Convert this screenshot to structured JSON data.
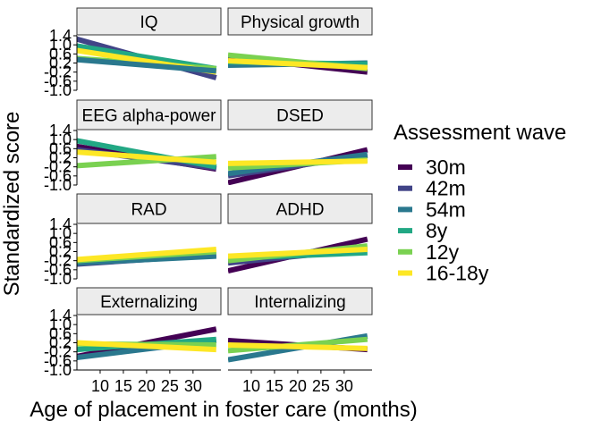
{
  "chart_data": {
    "type": "line",
    "xlabel": "Age of placement in foster care (months)",
    "ylabel": "Standardized score",
    "xlim": [
      5,
      36
    ],
    "ylim": [
      -1.0,
      1.4
    ],
    "x_ticks": [
      10,
      15,
      20,
      25,
      30
    ],
    "x_tick_labels": [
      "10",
      "15",
      "20",
      "25",
      "30"
    ],
    "y_ticks": [
      -1.0,
      -0.6,
      -0.2,
      0.2,
      0.6,
      1.0,
      1.4
    ],
    "y_tick_labels": [
      "-1.0",
      "-0.6",
      "-0.2",
      "0.2",
      "0.6",
      "1.0",
      "1.4"
    ],
    "grid": false,
    "legend": {
      "title": "Assessment wave",
      "placement": "right",
      "entries": [
        {
          "label": "30m",
          "color": "#440154"
        },
        {
          "label": "42m",
          "color": "#414487"
        },
        {
          "label": "54m",
          "color": "#2A788E"
        },
        {
          "label": "8y",
          "color": "#22A884"
        },
        {
          "label": "12y",
          "color": "#7AD151"
        },
        {
          "label": "16-18y",
          "color": "#FDE725"
        }
      ]
    },
    "panels": [
      {
        "title": "IQ",
        "series": [
          {
            "name": "42m",
            "x": [
              5,
              35
            ],
            "y": [
              1.25,
              -0.45
            ]
          },
          {
            "name": "8y",
            "x": [
              5,
              35
            ],
            "y": [
              0.95,
              -0.05
            ]
          },
          {
            "name": "12y",
            "x": [
              5,
              35
            ],
            "y": [
              0.4,
              -0.05
            ]
          },
          {
            "name": "16-18y",
            "x": [
              5,
              35
            ],
            "y": [
              0.75,
              -0.2
            ]
          },
          {
            "name": "54m",
            "x": [
              5,
              35
            ],
            "y": [
              0.35,
              -0.15
            ]
          }
        ]
      },
      {
        "title": "Physical growth",
        "series": [
          {
            "name": "30m",
            "x": [
              5,
              35
            ],
            "y": [
              0.45,
              -0.2
            ]
          },
          {
            "name": "54m",
            "x": [
              5,
              35
            ],
            "y": [
              0.1,
              0.2
            ]
          },
          {
            "name": "8y",
            "x": [
              5,
              35
            ],
            "y": [
              0.25,
              0.15
            ]
          },
          {
            "name": "12y",
            "x": [
              5,
              35
            ],
            "y": [
              0.55,
              -0.05
            ]
          },
          {
            "name": "16-18y",
            "x": [
              5,
              35
            ],
            "y": [
              0.3,
              0.0
            ]
          }
        ]
      },
      {
        "title": "EEG alpha-power",
        "series": [
          {
            "name": "30m",
            "x": [
              5,
              35
            ],
            "y": [
              0.7,
              -0.3
            ]
          },
          {
            "name": "42m",
            "x": [
              5,
              35
            ],
            "y": [
              0.55,
              -0.25
            ]
          },
          {
            "name": "8y",
            "x": [
              5,
              35
            ],
            "y": [
              0.95,
              -0.2
            ]
          },
          {
            "name": "12y",
            "x": [
              5,
              35
            ],
            "y": [
              -0.15,
              0.25
            ]
          },
          {
            "name": "16-18y",
            "x": [
              5,
              35
            ],
            "y": [
              0.45,
              0.0
            ]
          }
        ]
      },
      {
        "title": "DSED",
        "series": [
          {
            "name": "30m",
            "x": [
              5,
              35
            ],
            "y": [
              -0.9,
              0.55
            ]
          },
          {
            "name": "42m",
            "x": [
              5,
              35
            ],
            "y": [
              -0.6,
              0.3
            ]
          },
          {
            "name": "54m",
            "x": [
              5,
              35
            ],
            "y": [
              -0.5,
              0.35
            ]
          },
          {
            "name": "12y",
            "x": [
              5,
              35
            ],
            "y": [
              -0.25,
              0.1
            ]
          },
          {
            "name": "16-18y",
            "x": [
              5,
              35
            ],
            "y": [
              -0.05,
              0.05
            ]
          }
        ]
      },
      {
        "title": "RAD",
        "series": [
          {
            "name": "42m",
            "x": [
              5,
              35
            ],
            "y": [
              -0.35,
              0.05
            ]
          },
          {
            "name": "54m",
            "x": [
              5,
              35
            ],
            "y": [
              -0.3,
              0.0
            ]
          },
          {
            "name": "12y",
            "x": [
              5,
              35
            ],
            "y": [
              -0.2,
              0.2
            ]
          },
          {
            "name": "16-18y",
            "x": [
              5,
              35
            ],
            "y": [
              -0.15,
              0.3
            ]
          }
        ]
      },
      {
        "title": "ADHD",
        "series": [
          {
            "name": "30m",
            "x": [
              5,
              35
            ],
            "y": [
              -0.65,
              0.75
            ]
          },
          {
            "name": "42m",
            "x": [
              5,
              35
            ],
            "y": [
              -0.3,
              0.3
            ]
          },
          {
            "name": "8y",
            "x": [
              5,
              35
            ],
            "y": [
              -0.1,
              0.15
            ]
          },
          {
            "name": "12y",
            "x": [
              5,
              35
            ],
            "y": [
              -0.2,
              0.45
            ]
          },
          {
            "name": "16-18y",
            "x": [
              5,
              35
            ],
            "y": [
              0.0,
              0.3
            ]
          }
        ]
      },
      {
        "title": "Externalizing",
        "series": [
          {
            "name": "30m",
            "x": [
              5,
              35
            ],
            "y": [
              -0.4,
              0.8
            ]
          },
          {
            "name": "54m",
            "x": [
              5,
              35
            ],
            "y": [
              -0.45,
              0.3
            ]
          },
          {
            "name": "8y",
            "x": [
              5,
              35
            ],
            "y": [
              -0.1,
              0.35
            ]
          },
          {
            "name": "12y",
            "x": [
              5,
              35
            ],
            "y": [
              0.15,
              0.1
            ]
          },
          {
            "name": "16-18y",
            "x": [
              5,
              35
            ],
            "y": [
              0.2,
              -0.1
            ]
          }
        ]
      },
      {
        "title": "Internalizing",
        "series": [
          {
            "name": "30m",
            "x": [
              5,
              35
            ],
            "y": [
              0.3,
              -0.1
            ]
          },
          {
            "name": "54m",
            "x": [
              5,
              35
            ],
            "y": [
              -0.55,
              0.5
            ]
          },
          {
            "name": "12y",
            "x": [
              5,
              35
            ],
            "y": [
              -0.15,
              0.35
            ]
          },
          {
            "name": "16-18y",
            "x": [
              5,
              35
            ],
            "y": [
              0.1,
              -0.05
            ]
          }
        ]
      }
    ]
  }
}
